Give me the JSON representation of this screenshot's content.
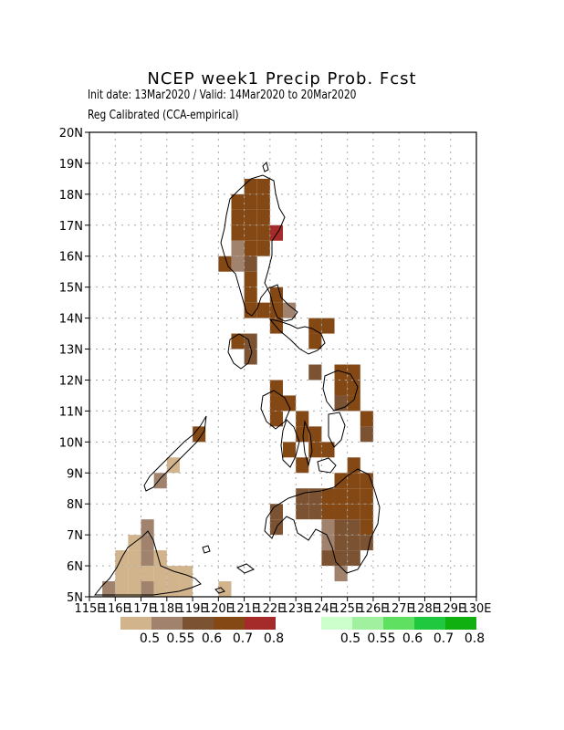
{
  "title": "NCEP week1 Precip Prob. Fcst",
  "subtitle_1": "Init date: 13Mar2020 / Valid: 14Mar2020 to 20Mar2020",
  "subtitle_2": "Reg Calibrated (CCA-empirical)",
  "x_ticks": [
    "115E",
    "116E",
    "117E",
    "118E",
    "119E",
    "120E",
    "121E",
    "122E",
    "123E",
    "124E",
    "125E",
    "126E",
    "127E",
    "128E",
    "129E",
    "130E"
  ],
  "y_ticks": [
    "5N",
    "6N",
    "7N",
    "8N",
    "9N",
    "10N",
    "11N",
    "12N",
    "13N",
    "14N",
    "15N",
    "16N",
    "17N",
    "18N",
    "19N",
    "20N"
  ],
  "legend_dry": {
    "labels": [
      "0.5",
      "0.55",
      "0.6",
      "0.7",
      "0.8"
    ],
    "colors": [
      "#d2b48c",
      "#a0826d",
      "#7b5232",
      "#834814",
      "#a52a2a"
    ]
  },
  "legend_wet": {
    "labels": [
      "0.5",
      "0.55",
      "0.6",
      "0.7",
      "0.8"
    ],
    "colors": [
      "#cdffcd",
      "#a0f0a0",
      "#60e060",
      "#20c840",
      "#10b010"
    ]
  },
  "chart_data": {
    "type": "heatmap",
    "xlim": [
      115,
      130
    ],
    "ylim": [
      5,
      20
    ],
    "grid": true,
    "cell_size_deg": 0.5,
    "category": "below-normal (dry) probability",
    "cells": [
      {
        "lon": 121.0,
        "lat": 18.0,
        "p": 0.7
      },
      {
        "lon": 121.5,
        "lat": 18.0,
        "p": 0.7
      },
      {
        "lon": 120.5,
        "lat": 17.5,
        "p": 0.7
      },
      {
        "lon": 121.0,
        "lat": 17.5,
        "p": 0.7
      },
      {
        "lon": 121.5,
        "lat": 17.5,
        "p": 0.7
      },
      {
        "lon": 120.5,
        "lat": 17.0,
        "p": 0.7
      },
      {
        "lon": 121.0,
        "lat": 17.0,
        "p": 0.7
      },
      {
        "lon": 121.5,
        "lat": 17.0,
        "p": 0.7
      },
      {
        "lon": 120.5,
        "lat": 16.5,
        "p": 0.7
      },
      {
        "lon": 121.0,
        "lat": 16.5,
        "p": 0.7
      },
      {
        "lon": 121.5,
        "lat": 16.5,
        "p": 0.7
      },
      {
        "lon": 122.0,
        "lat": 16.5,
        "p": 0.8
      },
      {
        "lon": 120.5,
        "lat": 16.0,
        "p": 0.55
      },
      {
        "lon": 121.0,
        "lat": 16.0,
        "p": 0.7
      },
      {
        "lon": 121.5,
        "lat": 16.0,
        "p": 0.7
      },
      {
        "lon": 120.0,
        "lat": 15.5,
        "p": 0.7
      },
      {
        "lon": 120.5,
        "lat": 15.5,
        "p": 0.55
      },
      {
        "lon": 121.0,
        "lat": 15.5,
        "p": 0.6
      },
      {
        "lon": 121.0,
        "lat": 15.0,
        "p": 0.7
      },
      {
        "lon": 121.0,
        "lat": 14.5,
        "p": 0.7
      },
      {
        "lon": 122.0,
        "lat": 14.5,
        "p": 0.7
      },
      {
        "lon": 121.0,
        "lat": 14.0,
        "p": 0.7
      },
      {
        "lon": 121.5,
        "lat": 14.0,
        "p": 0.7
      },
      {
        "lon": 122.0,
        "lat": 14.0,
        "p": 0.7
      },
      {
        "lon": 122.5,
        "lat": 14.0,
        "p": 0.55
      },
      {
        "lon": 122.0,
        "lat": 13.5,
        "p": 0.7
      },
      {
        "lon": 123.5,
        "lat": 13.5,
        "p": 0.7
      },
      {
        "lon": 124.0,
        "lat": 13.5,
        "p": 0.7
      },
      {
        "lon": 120.5,
        "lat": 13.0,
        "p": 0.7
      },
      {
        "lon": 121.0,
        "lat": 13.0,
        "p": 0.6
      },
      {
        "lon": 123.5,
        "lat": 13.0,
        "p": 0.7
      },
      {
        "lon": 121.0,
        "lat": 12.5,
        "p": 0.6
      },
      {
        "lon": 124.5,
        "lat": 12.0,
        "p": 0.7
      },
      {
        "lon": 125.0,
        "lat": 12.0,
        "p": 0.7
      },
      {
        "lon": 123.5,
        "lat": 12.0,
        "p": 0.6
      },
      {
        "lon": 122.0,
        "lat": 11.5,
        "p": 0.7
      },
      {
        "lon": 124.5,
        "lat": 11.5,
        "p": 0.7
      },
      {
        "lon": 125.0,
        "lat": 11.5,
        "p": 0.7
      },
      {
        "lon": 122.0,
        "lat": 11.0,
        "p": 0.7
      },
      {
        "lon": 122.5,
        "lat": 11.0,
        "p": 0.7
      },
      {
        "lon": 124.5,
        "lat": 11.0,
        "p": 0.6
      },
      {
        "lon": 125.0,
        "lat": 11.0,
        "p": 0.7
      },
      {
        "lon": 122.0,
        "lat": 10.5,
        "p": 0.7
      },
      {
        "lon": 123.0,
        "lat": 10.5,
        "p": 0.7
      },
      {
        "lon": 125.5,
        "lat": 10.5,
        "p": 0.7
      },
      {
        "lon": 119.0,
        "lat": 10.0,
        "p": 0.7
      },
      {
        "lon": 123.0,
        "lat": 10.0,
        "p": 0.7
      },
      {
        "lon": 123.5,
        "lat": 10.0,
        "p": 0.7
      },
      {
        "lon": 125.5,
        "lat": 10.0,
        "p": 0.6
      },
      {
        "lon": 122.5,
        "lat": 9.5,
        "p": 0.7
      },
      {
        "lon": 123.5,
        "lat": 9.5,
        "p": 0.7
      },
      {
        "lon": 124.0,
        "lat": 9.5,
        "p": 0.7
      },
      {
        "lon": 123.0,
        "lat": 9.0,
        "p": 0.7
      },
      {
        "lon": 125.0,
        "lat": 9.0,
        "p": 0.7
      },
      {
        "lon": 118.0,
        "lat": 9.0,
        "p": 0.5
      },
      {
        "lon": 117.5,
        "lat": 8.5,
        "p": 0.55
      },
      {
        "lon": 124.5,
        "lat": 8.5,
        "p": 0.7
      },
      {
        "lon": 125.0,
        "lat": 8.5,
        "p": 0.7
      },
      {
        "lon": 125.5,
        "lat": 8.5,
        "p": 0.7
      },
      {
        "lon": 123.0,
        "lat": 8.0,
        "p": 0.6
      },
      {
        "lon": 123.5,
        "lat": 8.0,
        "p": 0.6
      },
      {
        "lon": 124.0,
        "lat": 8.0,
        "p": 0.7
      },
      {
        "lon": 124.5,
        "lat": 8.0,
        "p": 0.7
      },
      {
        "lon": 125.0,
        "lat": 8.0,
        "p": 0.7
      },
      {
        "lon": 125.5,
        "lat": 8.0,
        "p": 0.7
      },
      {
        "lon": 122.0,
        "lat": 7.5,
        "p": 0.6
      },
      {
        "lon": 123.0,
        "lat": 7.5,
        "p": 0.6
      },
      {
        "lon": 123.5,
        "lat": 7.5,
        "p": 0.6
      },
      {
        "lon": 124.0,
        "lat": 7.5,
        "p": 0.7
      },
      {
        "lon": 124.5,
        "lat": 7.5,
        "p": 0.7
      },
      {
        "lon": 125.0,
        "lat": 7.5,
        "p": 0.7
      },
      {
        "lon": 125.5,
        "lat": 7.5,
        "p": 0.7
      },
      {
        "lon": 122.0,
        "lat": 7.0,
        "p": 0.6
      },
      {
        "lon": 124.0,
        "lat": 7.0,
        "p": 0.55
      },
      {
        "lon": 124.5,
        "lat": 7.0,
        "p": 0.6
      },
      {
        "lon": 125.0,
        "lat": 7.0,
        "p": 0.6
      },
      {
        "lon": 125.5,
        "lat": 7.0,
        "p": 0.7
      },
      {
        "lon": 117.0,
        "lat": 7.0,
        "p": 0.55
      },
      {
        "lon": 116.5,
        "lat": 6.5,
        "p": 0.5
      },
      {
        "lon": 117.0,
        "lat": 6.5,
        "p": 0.55
      },
      {
        "lon": 124.0,
        "lat": 6.5,
        "p": 0.55
      },
      {
        "lon": 124.5,
        "lat": 6.5,
        "p": 0.6
      },
      {
        "lon": 125.0,
        "lat": 6.5,
        "p": 0.6
      },
      {
        "lon": 125.5,
        "lat": 6.5,
        "p": 0.6
      },
      {
        "lon": 116.0,
        "lat": 6.0,
        "p": 0.5
      },
      {
        "lon": 116.5,
        "lat": 6.0,
        "p": 0.5
      },
      {
        "lon": 117.0,
        "lat": 6.0,
        "p": 0.55
      },
      {
        "lon": 117.5,
        "lat": 6.0,
        "p": 0.5
      },
      {
        "lon": 124.0,
        "lat": 6.0,
        "p": 0.6
      },
      {
        "lon": 124.5,
        "lat": 6.0,
        "p": 0.6
      },
      {
        "lon": 125.0,
        "lat": 6.0,
        "p": 0.6
      },
      {
        "lon": 116.0,
        "lat": 5.5,
        "p": 0.5
      },
      {
        "lon": 116.5,
        "lat": 5.5,
        "p": 0.5
      },
      {
        "lon": 117.0,
        "lat": 5.5,
        "p": 0.5
      },
      {
        "lon": 117.5,
        "lat": 5.5,
        "p": 0.5
      },
      {
        "lon": 118.0,
        "lat": 5.5,
        "p": 0.5
      },
      {
        "lon": 118.5,
        "lat": 5.5,
        "p": 0.5
      },
      {
        "lon": 124.5,
        "lat": 5.5,
        "p": 0.55
      },
      {
        "lon": 115.5,
        "lat": 5.0,
        "p": 0.55
      },
      {
        "lon": 116.0,
        "lat": 5.0,
        "p": 0.5
      },
      {
        "lon": 116.5,
        "lat": 5.0,
        "p": 0.5
      },
      {
        "lon": 117.0,
        "lat": 5.0,
        "p": 0.55
      },
      {
        "lon": 117.5,
        "lat": 5.0,
        "p": 0.5
      },
      {
        "lon": 118.0,
        "lat": 5.0,
        "p": 0.5
      },
      {
        "lon": 118.5,
        "lat": 5.0,
        "p": 0.5
      },
      {
        "lon": 120.0,
        "lat": 5.0,
        "p": 0.5
      }
    ]
  }
}
